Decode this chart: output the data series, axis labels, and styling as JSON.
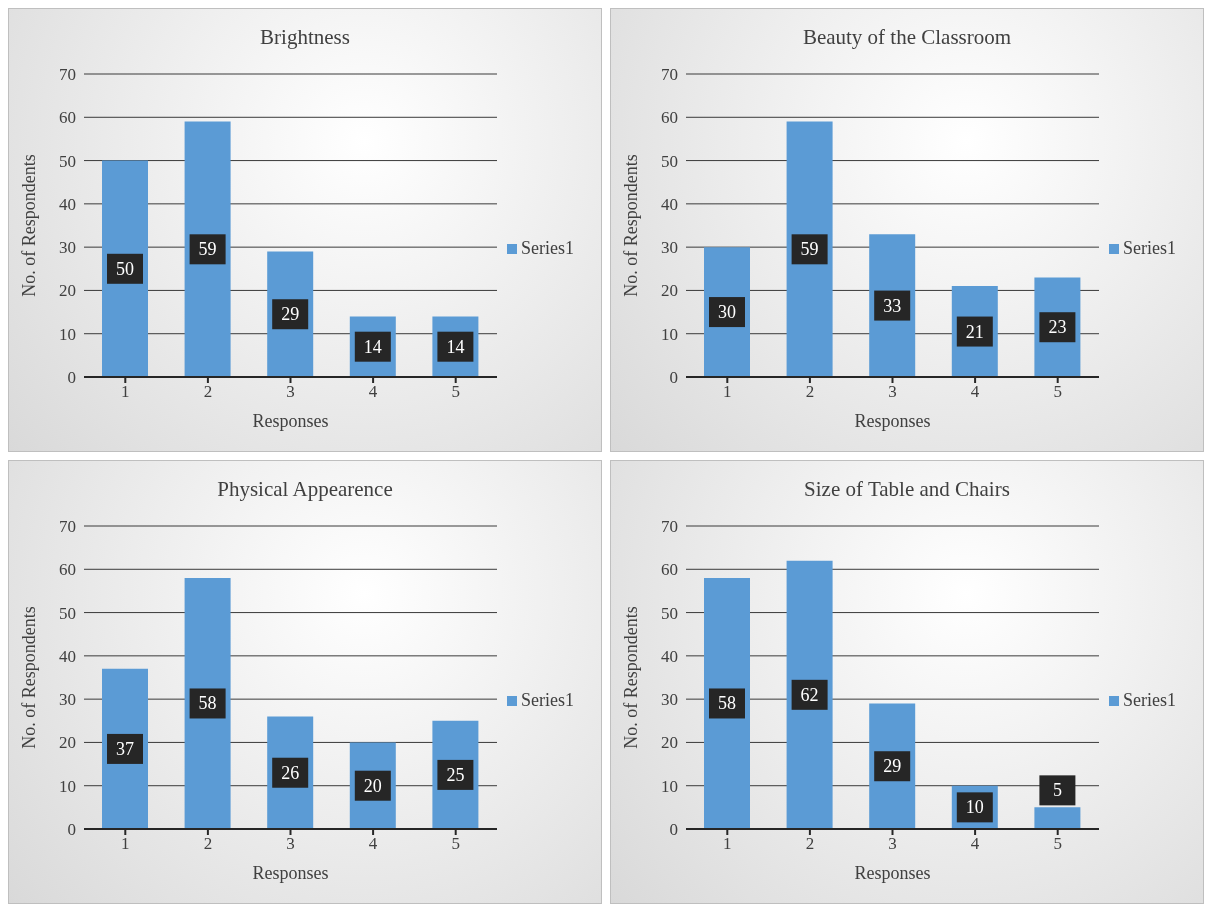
{
  "chart_data": [
    {
      "type": "bar",
      "title": "Brightness",
      "xlabel": "Responses",
      "ylabel": "No. of Respondents",
      "categories": [
        "1",
        "2",
        "3",
        "4",
        "5"
      ],
      "series": [
        {
          "name": "Series1",
          "color": "#5b9bd5",
          "values": [
            50,
            59,
            29,
            14,
            14
          ]
        }
      ],
      "ylim": [
        0,
        70
      ],
      "yticks": [
        0,
        10,
        20,
        30,
        40,
        50,
        60,
        70
      ],
      "grid": "y",
      "legend": "right",
      "data_labels": true
    },
    {
      "type": "bar",
      "title": "Beauty of the Classroom",
      "xlabel": "Responses",
      "ylabel": "No. of Respondents",
      "categories": [
        "1",
        "2",
        "3",
        "4",
        "5"
      ],
      "series": [
        {
          "name": "Series1",
          "color": "#5b9bd5",
          "values": [
            30,
            59,
            33,
            21,
            23
          ]
        }
      ],
      "ylim": [
        0,
        70
      ],
      "yticks": [
        0,
        10,
        20,
        30,
        40,
        50,
        60,
        70
      ],
      "grid": "y",
      "legend": "right",
      "data_labels": true
    },
    {
      "type": "bar",
      "title": "Physical Appearence",
      "xlabel": "Responses",
      "ylabel": "No. of Respondents",
      "categories": [
        "1",
        "2",
        "3",
        "4",
        "5"
      ],
      "series": [
        {
          "name": "Series1",
          "color": "#5b9bd5",
          "values": [
            37,
            58,
            26,
            20,
            25
          ]
        }
      ],
      "ylim": [
        0,
        70
      ],
      "yticks": [
        0,
        10,
        20,
        30,
        40,
        50,
        60,
        70
      ],
      "grid": "y",
      "legend": "right",
      "data_labels": true
    },
    {
      "type": "bar",
      "title": "Size of Table and Chairs",
      "xlabel": "Responses",
      "ylabel": "No. of Respondents",
      "categories": [
        "1",
        "2",
        "3",
        "4",
        "5"
      ],
      "series": [
        {
          "name": "Series1",
          "color": "#5b9bd5",
          "values": [
            58,
            62,
            29,
            10,
            5
          ]
        }
      ],
      "ylim": [
        0,
        70
      ],
      "yticks": [
        0,
        10,
        20,
        30,
        40,
        50,
        60,
        70
      ],
      "grid": "y",
      "legend": "right",
      "data_labels": true
    }
  ]
}
